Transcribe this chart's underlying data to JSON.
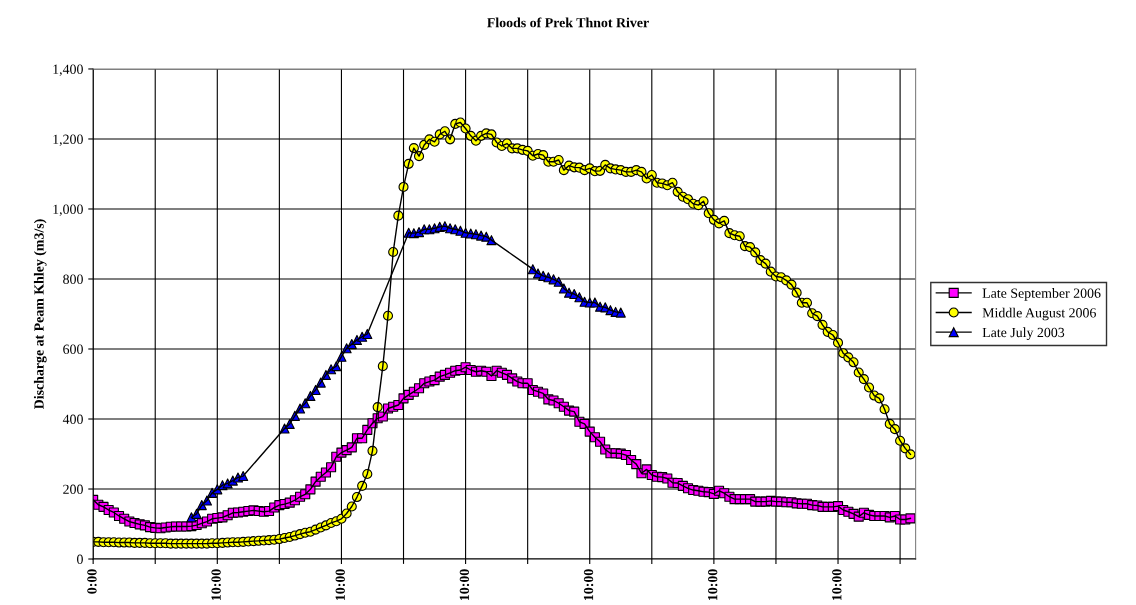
{
  "chart_data": {
    "type": "line",
    "title": "Floods of Prek Thnot River",
    "ylabel": "Discharge at Peam Khley (m3/s)",
    "categories": [
      "0:00",
      null,
      null,
      null,
      null,
      null,
      null,
      null,
      null,
      null,
      null,
      null,
      null,
      null,
      null,
      null,
      null,
      null,
      null,
      null,
      null,
      null,
      null,
      null,
      "10:00",
      null,
      null,
      null,
      null,
      null,
      null,
      null,
      null,
      null,
      null,
      null,
      null,
      null,
      null,
      null,
      null,
      null,
      null,
      null,
      null,
      null,
      null,
      null,
      "10:00",
      null,
      null,
      null,
      null,
      null,
      null,
      null,
      null,
      null,
      null,
      null,
      null,
      null,
      null,
      null,
      null,
      null,
      null,
      null,
      null,
      null,
      null,
      null,
      "10:00",
      null,
      null,
      null,
      null,
      null,
      null,
      null,
      null,
      null,
      null,
      null,
      null,
      null,
      null,
      null,
      null,
      null,
      null,
      null,
      null,
      null,
      null,
      null,
      "10:00",
      null,
      null,
      null,
      null,
      null,
      null,
      null,
      null,
      null,
      null,
      null,
      null,
      null,
      null,
      null,
      null,
      null,
      null,
      null,
      null,
      null,
      null,
      null,
      "10:00",
      null,
      null,
      null,
      null,
      null,
      null,
      null,
      null,
      null,
      null,
      null,
      null,
      null,
      null,
      null,
      null,
      null,
      null,
      null,
      null,
      null,
      null,
      null,
      "10:00",
      null,
      null,
      null,
      null,
      null,
      null,
      null,
      null,
      null,
      null,
      null,
      null,
      null,
      null,
      null
    ],
    "ylim": [
      0,
      1400
    ],
    "yticks": [
      0,
      200,
      400,
      600,
      800,
      {
        "value": 1000,
        "label": "1,000"
      },
      {
        "value": 1200,
        "label": "1,200"
      },
      {
        "value": 1400,
        "label": "1,400"
      }
    ],
    "grid": true,
    "legend": "right",
    "series": [
      {
        "name": "Late September 2006",
        "color": "#ff00ff",
        "marker": "square",
        "values": [
          169,
          155,
          149,
          140,
          133,
          123,
          115,
          107,
          103,
          99,
          96,
          91,
          89,
          88,
          90,
          92,
          93,
          93,
          93,
          94,
          97,
          102,
          107,
          115,
          117,
          119,
          125,
          132,
          133,
          135,
          137,
          139,
          137,
          135,
          137,
          147,
          154,
          157,
          161,
          168,
          178,
          185,
          199,
          221,
          235,
          247,
          262,
          292,
          304,
          311,
          319,
          345,
          345,
          369,
          388,
          402,
          407,
          430,
          435,
          440,
          459,
          469,
          478,
          488,
          502,
          507,
          511,
          521,
          526,
          532,
          538,
          540,
          548,
          540,
          535,
          538,
          535,
          523,
          538,
          532,
          526,
          516,
          507,
          502,
          502,
          483,
          478,
          473,
          456,
          453,
          445,
          435,
          424,
          421,
          392,
          386,
          364,
          348,
          335,
          313,
          302,
          302,
          301,
          297,
          283,
          271,
          245,
          256,
          240,
          235,
          234,
          230,
          218,
          217,
          209,
          202,
          197,
          195,
          192,
          191,
          186,
          195,
          188,
          178,
          171,
          171,
          171,
          171,
          164,
          164,
          164,
          166,
          164,
          164,
          162,
          162,
          159,
          158,
          158,
          154,
          153,
          149,
          149,
          149,
          151,
          140,
          135,
          129,
          121,
          132,
          126,
          123,
          123,
          123,
          119,
          123,
          113,
          113,
          116,
          null
        ]
      },
      {
        "name": "Middle August 2006",
        "color": "#ffff00",
        "marker": "circle",
        "values": [
          49,
          49,
          48,
          48,
          48,
          47,
          47,
          47,
          46,
          46,
          46,
          45,
          45,
          45,
          45,
          44,
          44,
          44,
          44,
          44,
          44,
          44,
          44,
          45,
          45,
          46,
          47,
          48,
          48,
          49,
          50,
          51,
          52,
          53,
          54,
          55,
          57,
          60,
          63,
          67,
          71,
          75,
          78,
          84,
          90,
          96,
          103,
          108,
          115,
          130,
          150,
          177,
          209,
          243,
          309,
          434,
          551,
          695,
          877,
          981,
          1063,
          1129,
          1174,
          1151,
          1183,
          1199,
          1192,
          1213,
          1222,
          1199,
          1243,
          1247,
          1230,
          1209,
          1195,
          1209,
          1216,
          1213,
          1190,
          1180,
          1187,
          1173,
          1173,
          1169,
          1166,
          1152,
          1157,
          1154,
          1135,
          1135,
          1140,
          1111,
          1124,
          1119,
          1118,
          1111,
          1116,
          1108,
          1109,
          1126,
          1116,
          1113,
          1111,
          1106,
          1106,
          1111,
          1106,
          1087,
          1097,
          1075,
          1073,
          1068,
          1075,
          1049,
          1035,
          1028,
          1015,
          1011,
          1022,
          988,
          969,
          959,
          966,
          931,
          925,
          922,
          894,
          891,
          876,
          854,
          844,
          821,
          807,
          805,
          796,
          784,
          761,
          732,
          732,
          702,
          694,
          669,
          649,
          640,
          618,
          588,
          576,
          562,
          533,
          514,
          490,
          467,
          459,
          428,
          386,
          371,
          338,
          316,
          299,
          null
        ]
      },
      {
        "name": "Late July 2003",
        "color": "#0000ff",
        "marker": "triangle",
        "values": [
          null,
          null,
          null,
          null,
          null,
          null,
          null,
          null,
          null,
          null,
          null,
          null,
          null,
          null,
          null,
          null,
          null,
          null,
          null,
          119,
          129,
          154,
          167,
          189,
          199,
          211,
          216,
          224,
          233,
          237,
          null,
          null,
          null,
          null,
          null,
          null,
          null,
          373,
          386,
          409,
          430,
          445,
          466,
          483,
          504,
          526,
          542,
          551,
          578,
          602,
          614,
          626,
          635,
          643,
          null,
          null,
          null,
          null,
          null,
          null,
          null,
          932,
          931,
          934,
          942,
          942,
          945,
          949,
          951,
          945,
          942,
          938,
          932,
          930,
          928,
          924,
          921,
          911,
          null,
          null,
          null,
          null,
          null,
          null,
          null,
          828,
          816,
          809,
          805,
          799,
          792,
          773,
          761,
          757,
          748,
          735,
          733,
          733,
          721,
          719,
          711,
          706,
          704,
          null,
          null,
          null,
          null,
          null,
          null,
          null,
          null,
          null,
          null,
          null,
          null,
          null,
          null,
          null,
          null,
          null,
          null,
          null,
          null,
          null,
          null,
          null,
          null,
          null,
          null,
          null,
          null,
          null,
          null,
          null,
          null,
          null,
          null,
          null,
          null,
          null,
          null,
          null,
          null,
          null,
          null,
          null,
          null,
          null,
          null,
          null,
          null,
          null,
          null,
          null,
          null,
          null,
          null,
          null,
          null,
          null
        ]
      }
    ]
  }
}
